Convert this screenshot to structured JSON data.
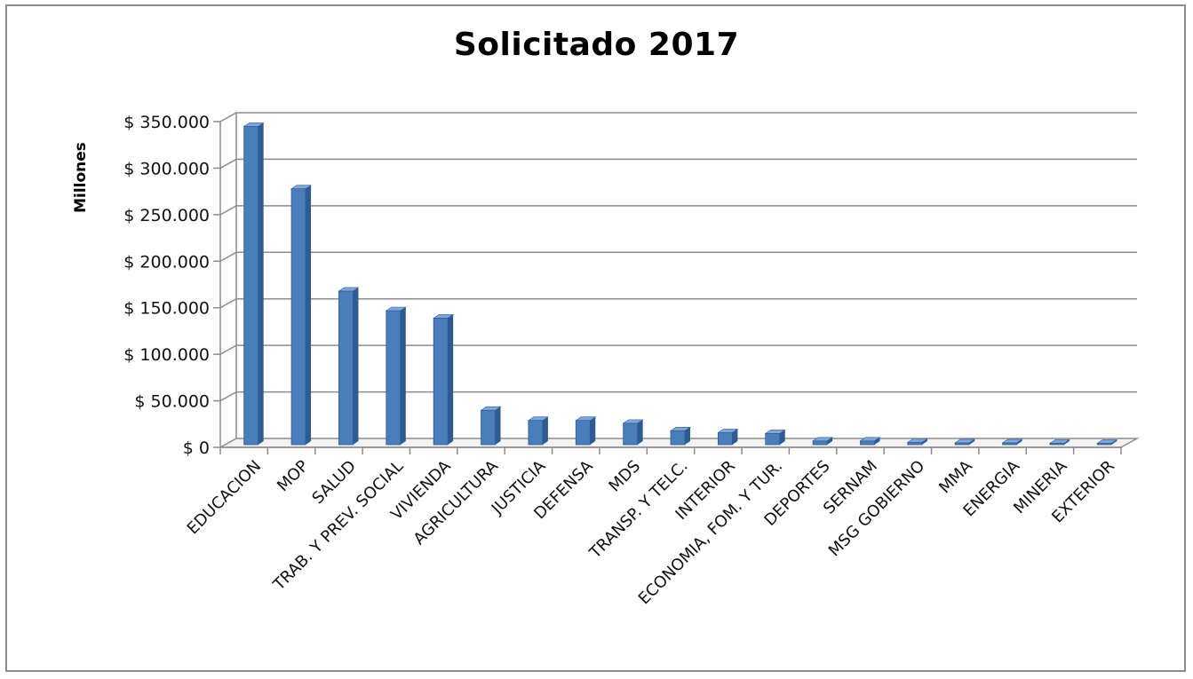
{
  "chart_data": {
    "type": "bar",
    "title": "Solicitado 2017",
    "ylabel": "Millones",
    "xlabel": "",
    "ylim": [
      0,
      350000
    ],
    "y_ticks": [
      0,
      50000,
      100000,
      150000,
      200000,
      250000,
      300000,
      350000
    ],
    "y_tick_labels": [
      "$ 0",
      "$ 50.000",
      "$ 100.000",
      "$ 150.000",
      "$ 200.000",
      "$ 250.000",
      "$ 300.000",
      "$ 350.000"
    ],
    "categories": [
      "EDUCACION",
      "MOP",
      "SALUD",
      "TRAB. Y PREV. SOCIAL",
      "VIVIENDA",
      "AGRICULTURA",
      "JUSTICIA",
      "DEFENSA",
      "MDS",
      "TRANSP. Y TELC.",
      "INTERIOR",
      "ECONOMIA, FOM. Y TUR.",
      "DEPORTES",
      "SERNAM",
      "MSG GOBIERNO",
      "MMA",
      "ENERGIA",
      "MINERIA",
      "EXTERIOR"
    ],
    "values": [
      342000,
      275000,
      165000,
      144000,
      136000,
      37000,
      26000,
      26000,
      23000,
      15000,
      13000,
      12000,
      4000,
      4000,
      2500,
      2000,
      2000,
      1500,
      1500
    ],
    "grid": true,
    "legend": "none",
    "bar_color": "#4a7ebb",
    "bar_color_dark": "#2f5b93",
    "bar_color_light": "#7ea6da"
  }
}
